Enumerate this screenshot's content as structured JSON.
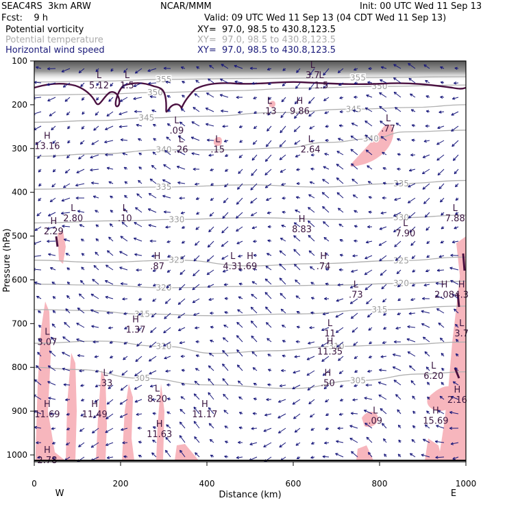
{
  "header": {
    "model": "SEAC4RS  3km ARW",
    "forecast": "Fcst:    9 h",
    "center": "NCAR/MMM",
    "init": "Init: 00 UTC Wed 11 Sep 13",
    "valid": "Valid: 09 UTC Wed 11 Sep 13 (04 CDT Wed 11 Sep 13)",
    "fields": [
      {
        "name": "Potential vorticity",
        "xy": "XY=  97.0, 98.5 to 430.8,123.5",
        "color": "#000000"
      },
      {
        "name": "Potential temperature",
        "xy": "XY=  97.0, 98.5 to 430.8,123.5",
        "color": "#aaaaaa"
      },
      {
        "name": "Horizontal wind speed",
        "xy": "XY=  97.0, 98.5 to 430.8,123.5",
        "color": "#1a1a7a"
      }
    ]
  },
  "chart_data": {
    "type": "cross-section",
    "xlabel": "Distance (km)",
    "ylabel": "Pressure (hPa)",
    "xlim": [
      0,
      1000
    ],
    "ylim": [
      1000,
      100
    ],
    "x_ticks": [
      0,
      200,
      400,
      600,
      800,
      1000
    ],
    "y_ticks": [
      100,
      200,
      300,
      400,
      500,
      600,
      700,
      800,
      900,
      1000
    ],
    "end_labels": {
      "left": "W",
      "right": "E"
    },
    "isentropes": [
      {
        "value": 305,
        "points": [
          [
            0,
            800
          ],
          [
            100,
            805
          ],
          [
            250,
            825
          ],
          [
            400,
            840
          ],
          [
            600,
            848
          ],
          [
            750,
            830
          ],
          [
            900,
            815
          ],
          [
            1000,
            810
          ]
        ]
      },
      {
        "value": 310,
        "points": [
          [
            0,
            745
          ],
          [
            150,
            740
          ],
          [
            300,
            752
          ],
          [
            420,
            768
          ],
          [
            550,
            762
          ],
          [
            700,
            752
          ],
          [
            850,
            748
          ],
          [
            1000,
            742
          ]
        ]
      },
      {
        "value": 315,
        "points": [
          [
            0,
            668
          ],
          [
            120,
            670
          ],
          [
            250,
            678
          ],
          [
            420,
            682
          ],
          [
            600,
            678
          ],
          [
            800,
            668
          ],
          [
            1000,
            660
          ]
        ]
      },
      {
        "value": 320,
        "points": [
          [
            0,
            610
          ],
          [
            150,
            612
          ],
          [
            300,
            618
          ],
          [
            500,
            615
          ],
          [
            700,
            612
          ],
          [
            850,
            608
          ],
          [
            1000,
            603
          ]
        ]
      },
      {
        "value": 325,
        "points": [
          [
            0,
            555
          ],
          [
            150,
            560
          ],
          [
            330,
            555
          ],
          [
            500,
            568
          ],
          [
            650,
            563
          ],
          [
            850,
            556
          ],
          [
            1000,
            548
          ]
        ]
      },
      {
        "value": 330,
        "points": [
          [
            0,
            470
          ],
          [
            200,
            465
          ],
          [
            330,
            462
          ],
          [
            500,
            458
          ],
          [
            700,
            462
          ],
          [
            850,
            458
          ],
          [
            1000,
            452
          ]
        ]
      },
      {
        "value": 335,
        "points": [
          [
            0,
            393
          ],
          [
            150,
            390
          ],
          [
            300,
            388
          ],
          [
            500,
            383
          ],
          [
            650,
            388
          ],
          [
            850,
            380
          ],
          [
            1000,
            373
          ]
        ]
      },
      {
        "value": 340,
        "points": [
          [
            0,
            318
          ],
          [
            150,
            312
          ],
          [
            300,
            303
          ],
          [
            460,
            303
          ],
          [
            580,
            298
          ],
          [
            680,
            286
          ],
          [
            780,
            278
          ],
          [
            860,
            262
          ],
          [
            1000,
            258
          ]
        ]
      },
      {
        "value": 345,
        "points": [
          [
            0,
            240
          ],
          [
            150,
            236
          ],
          [
            260,
            230
          ],
          [
            400,
            226
          ],
          [
            560,
            218
          ],
          [
            740,
            210
          ],
          [
            880,
            206
          ],
          [
            1000,
            200
          ]
        ]
      },
      {
        "value": 350,
        "points": [
          [
            0,
            178
          ],
          [
            150,
            176
          ],
          [
            280,
            172
          ],
          [
            450,
            168
          ],
          [
            620,
            162
          ],
          [
            800,
            158
          ],
          [
            1000,
            155
          ]
        ]
      },
      {
        "value": 355,
        "points": [
          [
            0,
            148
          ],
          [
            150,
            146
          ],
          [
            300,
            142
          ],
          [
            500,
            140
          ],
          [
            750,
            138
          ],
          [
            1000,
            136
          ]
        ]
      }
    ],
    "extrema": [
      {
        "type": "H",
        "value": "13.16",
        "x": 30,
        "p": 290
      },
      {
        "type": "L",
        "value": "2.80",
        "x": 90,
        "p": 455
      },
      {
        "type": "H",
        "value": "2.29",
        "x": 45,
        "p": 485
      },
      {
        "type": "L",
        "value": ".10",
        "x": 210,
        "p": 455
      },
      {
        "type": "H",
        "value": ".87",
        "x": 285,
        "p": 565
      },
      {
        "type": "L",
        "value": "4.31",
        "x": 460,
        "p": 565
      },
      {
        "type": "H",
        "value": ".69",
        "x": 500,
        "p": 565
      },
      {
        "type": "H",
        "value": "8.83",
        "x": 620,
        "p": 480
      },
      {
        "type": "H",
        "value": ".74",
        "x": 670,
        "p": 565
      },
      {
        "type": "L",
        "value": "7.90",
        "x": 860,
        "p": 490
      },
      {
        "type": "L",
        "value": "7.88",
        "x": 975,
        "p": 455
      },
      {
        "type": "L",
        "value": ".73",
        "x": 745,
        "p": 630
      },
      {
        "type": "H",
        "value": "2.08",
        "x": 950,
        "p": 630
      },
      {
        "type": "H",
        "value": "4.3",
        "x": 990,
        "p": 630
      },
      {
        "type": "H",
        "value": "1.37",
        "x": 235,
        "p": 710
      },
      {
        "type": "L",
        "value": "3.07",
        "x": 30,
        "p": 738
      },
      {
        "type": "L",
        "value": "11",
        "x": 685,
        "p": 718
      },
      {
        "type": "H",
        "value": "11.35",
        "x": 685,
        "p": 760
      },
      {
        "type": "L",
        "value": "3.7",
        "x": 990,
        "p": 718
      },
      {
        "type": "L",
        "value": ".33",
        "x": 165,
        "p": 832
      },
      {
        "type": "H",
        "value": ".50",
        "x": 680,
        "p": 832
      },
      {
        "type": "L",
        "value": "6.20",
        "x": 925,
        "p": 815
      },
      {
        "type": "L",
        "value": "8.20",
        "x": 285,
        "p": 868
      },
      {
        "type": "H",
        "value": "11.69",
        "x": 30,
        "p": 903
      },
      {
        "type": "H",
        "value": "11.49",
        "x": 140,
        "p": 903
      },
      {
        "type": "H",
        "value": "11.17",
        "x": 395,
        "p": 903
      },
      {
        "type": "H",
        "value": "2.16",
        "x": 980,
        "p": 870
      },
      {
        "type": "L",
        "value": ".09",
        "x": 790,
        "p": 918
      },
      {
        "type": "H",
        "value": "15.69",
        "x": 930,
        "p": 918
      },
      {
        "type": "H",
        "value": "11.63",
        "x": 290,
        "p": 948
      },
      {
        "type": "H",
        "value": "2.78",
        "x": 30,
        "p": 1008
      },
      {
        "type": "L",
        "value": ".13",
        "x": 545,
        "p": 210
      },
      {
        "type": "H",
        "value": "9.86",
        "x": 615,
        "p": 210
      },
      {
        "type": "L",
        "value": ".09",
        "x": 330,
        "p": 255
      },
      {
        "type": "L",
        "value": ".26",
        "x": 340,
        "p": 298
      },
      {
        "type": "L",
        "value": ".15",
        "x": 425,
        "p": 298
      },
      {
        "type": "L",
        "value": "2.64",
        "x": 640,
        "p": 298
      },
      {
        "type": "L",
        "value": ".77",
        "x": 820,
        "p": 250
      },
      {
        "type": "L",
        "value": "5.12",
        "x": 150,
        "p": 152
      },
      {
        "type": "L",
        "value": "1.5",
        "x": 215,
        "p": 152
      },
      {
        "type": "L",
        "value": "3.7",
        "x": 645,
        "p": 128
      },
      {
        "type": "L",
        "value": "1.5",
        "x": 665,
        "p": 152
      }
    ]
  }
}
